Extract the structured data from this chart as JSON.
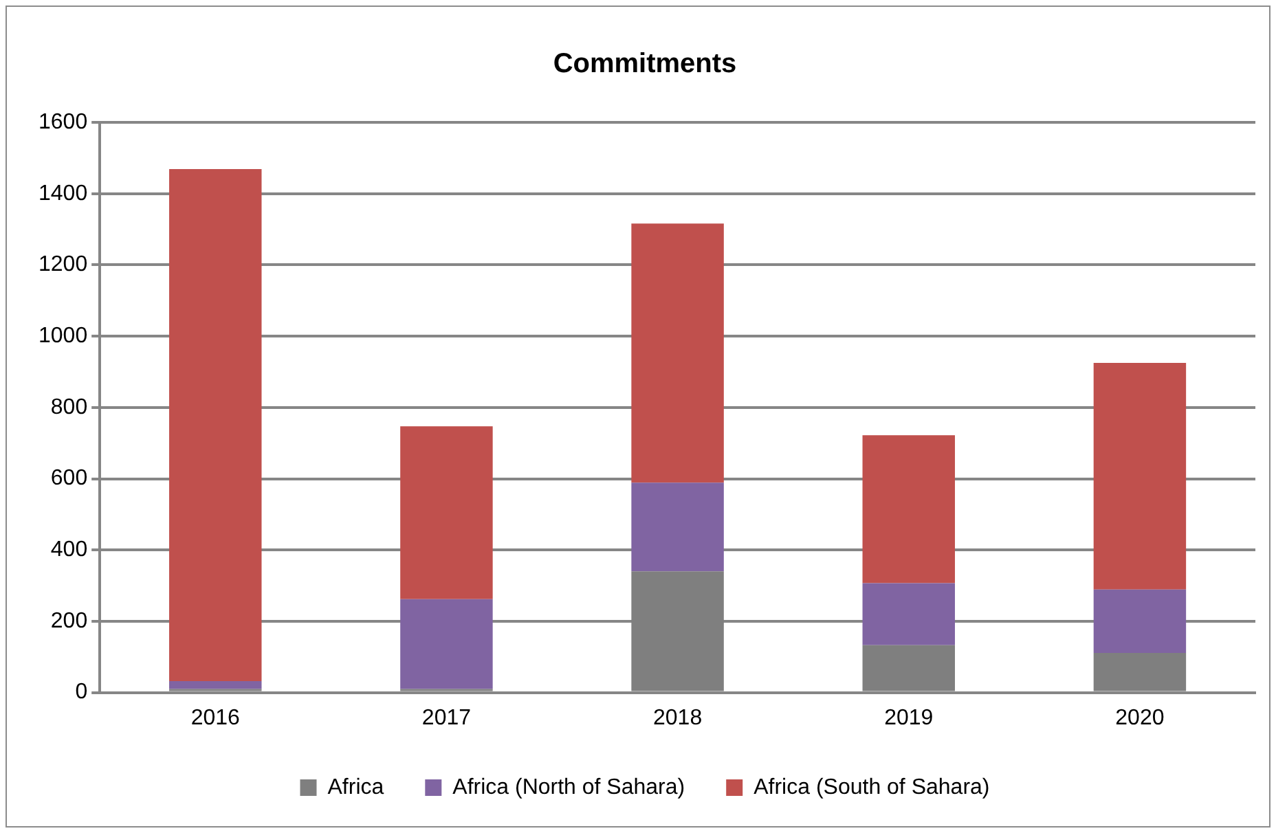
{
  "chart_data": {
    "type": "bar",
    "title": "Commitments",
    "stacked": true,
    "categories": [
      "2016",
      "2017",
      "2018",
      "2019",
      "2020"
    ],
    "series": [
      {
        "name": "Africa",
        "color": "#7f7f7f",
        "values": [
          10,
          10,
          340,
          133,
          111
        ]
      },
      {
        "name": "Africa (North of Sahara)",
        "color": "#8064a2",
        "values": [
          22,
          252,
          249,
          174,
          178
        ]
      },
      {
        "name": "Africa (South of Sahara)",
        "color": "#c0504d",
        "values": [
          1437,
          485,
          727,
          415,
          636
        ]
      }
    ],
    "ylim": [
      0,
      1600
    ],
    "yticks": [
      0,
      200,
      400,
      600,
      800,
      1000,
      1200,
      1400,
      1600
    ],
    "grid": "y",
    "legend": "bottom"
  }
}
